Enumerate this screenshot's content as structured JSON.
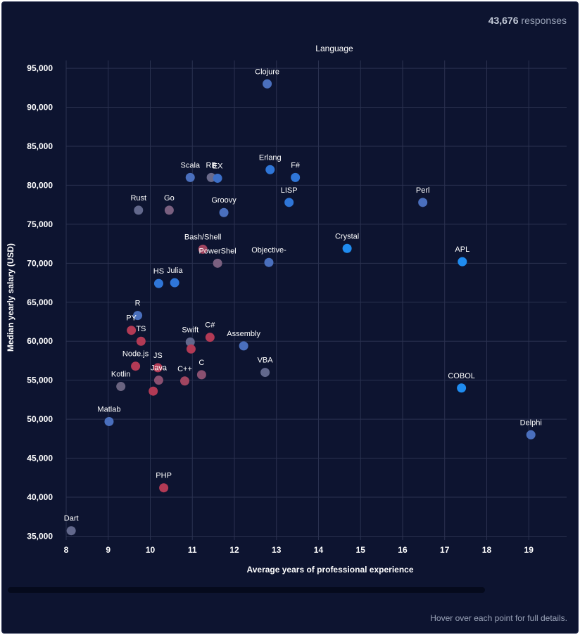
{
  "header": {
    "responses_count": "43,676",
    "responses_label": "responses"
  },
  "footer": {
    "hint": "Hover over each point for full details."
  },
  "chart_data": {
    "type": "scatter",
    "title": "Language",
    "xlabel": "Average years of professional experience",
    "ylabel": "Median yearly salary (USD)",
    "xlim": [
      8,
      19.9
    ],
    "ylim": [
      34500,
      96000
    ],
    "xticks": [
      8,
      9,
      10,
      11,
      12,
      13,
      14,
      15,
      16,
      17,
      18,
      19
    ],
    "yticks": [
      35000,
      40000,
      45000,
      50000,
      55000,
      60000,
      65000,
      70000,
      75000,
      80000,
      85000,
      90000,
      95000
    ],
    "ytick_labels": [
      "35,000",
      "40,000",
      "45,000",
      "50,000",
      "55,000",
      "60,000",
      "65,000",
      "70,000",
      "75,000",
      "80,000",
      "85,000",
      "90,000",
      "95,000"
    ],
    "points": [
      {
        "label": "Clojure",
        "x": 12.78,
        "y": 93000,
        "color": "#4a6fbd"
      },
      {
        "label": "Scala",
        "x": 10.95,
        "y": 81000,
        "color": "#4a6fbd"
      },
      {
        "label": "RB",
        "x": 11.45,
        "y": 81000,
        "color": "#6a6a8a"
      },
      {
        "label": "EX",
        "x": 11.6,
        "y": 80900,
        "color": "#3c6fc8"
      },
      {
        "label": "Erlang",
        "x": 12.85,
        "y": 82000,
        "color": "#2f76d8"
      },
      {
        "label": "F#",
        "x": 13.45,
        "y": 81000,
        "color": "#2f76d8"
      },
      {
        "label": "Rust",
        "x": 9.72,
        "y": 76800,
        "color": "#62688c"
      },
      {
        "label": "Go",
        "x": 10.45,
        "y": 76800,
        "color": "#7a6080"
      },
      {
        "label": "Groovy",
        "x": 11.75,
        "y": 76500,
        "color": "#4a6fbd"
      },
      {
        "label": "LISP",
        "x": 13.3,
        "y": 77800,
        "color": "#2f76d8"
      },
      {
        "label": "Perl",
        "x": 16.48,
        "y": 77800,
        "color": "#4a6fbd"
      },
      {
        "label": "Bash/Shell",
        "x": 11.25,
        "y": 71800,
        "color": "#a04560"
      },
      {
        "label": "PowerShel",
        "x": 11.6,
        "y": 70000,
        "color": "#7a6080"
      },
      {
        "label": "Objective-",
        "x": 12.82,
        "y": 70100,
        "color": "#4a6fbd"
      },
      {
        "label": "Crystal",
        "x": 14.68,
        "y": 71900,
        "color": "#1f8cf0"
      },
      {
        "label": "APL",
        "x": 17.42,
        "y": 70200,
        "color": "#1f8cf0"
      },
      {
        "label": "HS",
        "x": 10.2,
        "y": 67400,
        "color": "#2f76d8"
      },
      {
        "label": "Julia",
        "x": 10.58,
        "y": 67500,
        "color": "#2f76d8"
      },
      {
        "label": "R",
        "x": 9.7,
        "y": 63300,
        "color": "#4a6fbd"
      },
      {
        "label": "PY",
        "x": 9.55,
        "y": 61400,
        "color": "#b23a55"
      },
      {
        "label": "TS",
        "x": 9.78,
        "y": 60000,
        "color": "#b23a55"
      },
      {
        "label": "Swift",
        "x": 10.95,
        "y": 59900,
        "color": "#62688c"
      },
      {
        "label": "C#",
        "x": 11.42,
        "y": 60500,
        "color": "#b23a55"
      },
      {
        "label": "",
        "x": 10.97,
        "y": 59000,
        "color": "#b23a55"
      },
      {
        "label": "Assembly",
        "x": 12.22,
        "y": 59400,
        "color": "#4a6fbd"
      },
      {
        "label": "Node.js",
        "x": 9.65,
        "y": 56800,
        "color": "#b23a55"
      },
      {
        "label": "JS",
        "x": 10.18,
        "y": 56600,
        "color": "#b23a55"
      },
      {
        "label": "Java",
        "x": 10.2,
        "y": 55000,
        "color": "#8a5070"
      },
      {
        "label": "",
        "x": 10.07,
        "y": 53600,
        "color": "#b23a55"
      },
      {
        "label": "C++",
        "x": 10.82,
        "y": 54900,
        "color": "#a04560"
      },
      {
        "label": "C",
        "x": 11.22,
        "y": 55700,
        "color": "#8a5070"
      },
      {
        "label": "VBA",
        "x": 12.73,
        "y": 56000,
        "color": "#62688c"
      },
      {
        "label": "Kotlin",
        "x": 9.3,
        "y": 54200,
        "color": "#6a6480"
      },
      {
        "label": "COBOL",
        "x": 17.4,
        "y": 54000,
        "color": "#1f8cf0"
      },
      {
        "label": "Matlab",
        "x": 9.02,
        "y": 49700,
        "color": "#4a6fbd"
      },
      {
        "label": "Delphi",
        "x": 19.05,
        "y": 48000,
        "color": "#4a6fbd"
      },
      {
        "label": "PHP",
        "x": 10.32,
        "y": 41200,
        "color": "#b23a55"
      },
      {
        "label": "Dart",
        "x": 8.12,
        "y": 35700,
        "color": "#62688c"
      }
    ]
  }
}
